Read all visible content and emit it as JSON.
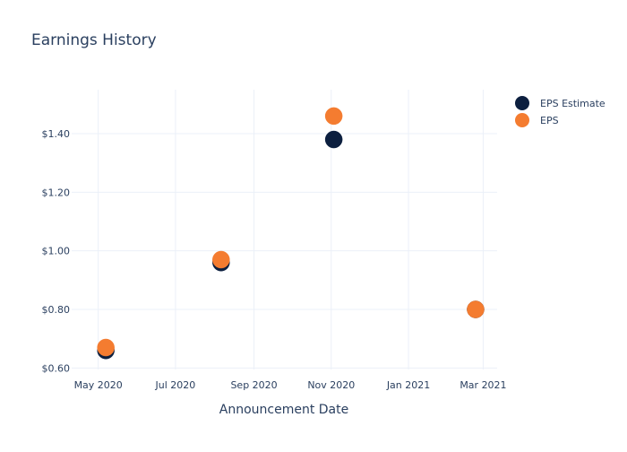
{
  "chart_data": {
    "type": "scatter",
    "title": "Earnings History",
    "xlabel": "Announcement Date",
    "ylabel": "",
    "x_ticks": [
      {
        "date": "2020-05-01",
        "label": "May 2020"
      },
      {
        "date": "2020-07-01",
        "label": "Jul 2020"
      },
      {
        "date": "2020-09-01",
        "label": "Sep 2020"
      },
      {
        "date": "2020-11-01",
        "label": "Nov 2020"
      },
      {
        "date": "2021-01-01",
        "label": "Jan 2021"
      },
      {
        "date": "2021-03-01",
        "label": "Mar 2021"
      }
    ],
    "xlim": [
      "2020-04-10",
      "2021-03-12"
    ],
    "y_ticks": [
      {
        "value": 0.6,
        "label": "$0.60"
      },
      {
        "value": 0.8,
        "label": "$0.80"
      },
      {
        "value": 1.0,
        "label": "$1.00"
      },
      {
        "value": 1.2,
        "label": "$1.20"
      },
      {
        "value": 1.4,
        "label": "$1.40"
      }
    ],
    "ylim": [
      0.595,
      1.55
    ],
    "grid": true,
    "legend_position": "top-right",
    "series": [
      {
        "name": "EPS Estimate",
        "color": "#0c1f3f",
        "points": [
          {
            "x": "2020-05-07",
            "y": 0.66
          },
          {
            "x": "2020-08-06",
            "y": 0.96
          },
          {
            "x": "2020-11-03",
            "y": 1.38
          },
          {
            "x": "2021-02-23",
            "y": 0.8
          }
        ]
      },
      {
        "name": "EPS",
        "color": "#f47c30",
        "points": [
          {
            "x": "2020-05-07",
            "y": 0.67
          },
          {
            "x": "2020-08-06",
            "y": 0.97
          },
          {
            "x": "2020-11-03",
            "y": 1.46
          },
          {
            "x": "2021-02-23",
            "y": 0.8
          }
        ]
      }
    ]
  }
}
